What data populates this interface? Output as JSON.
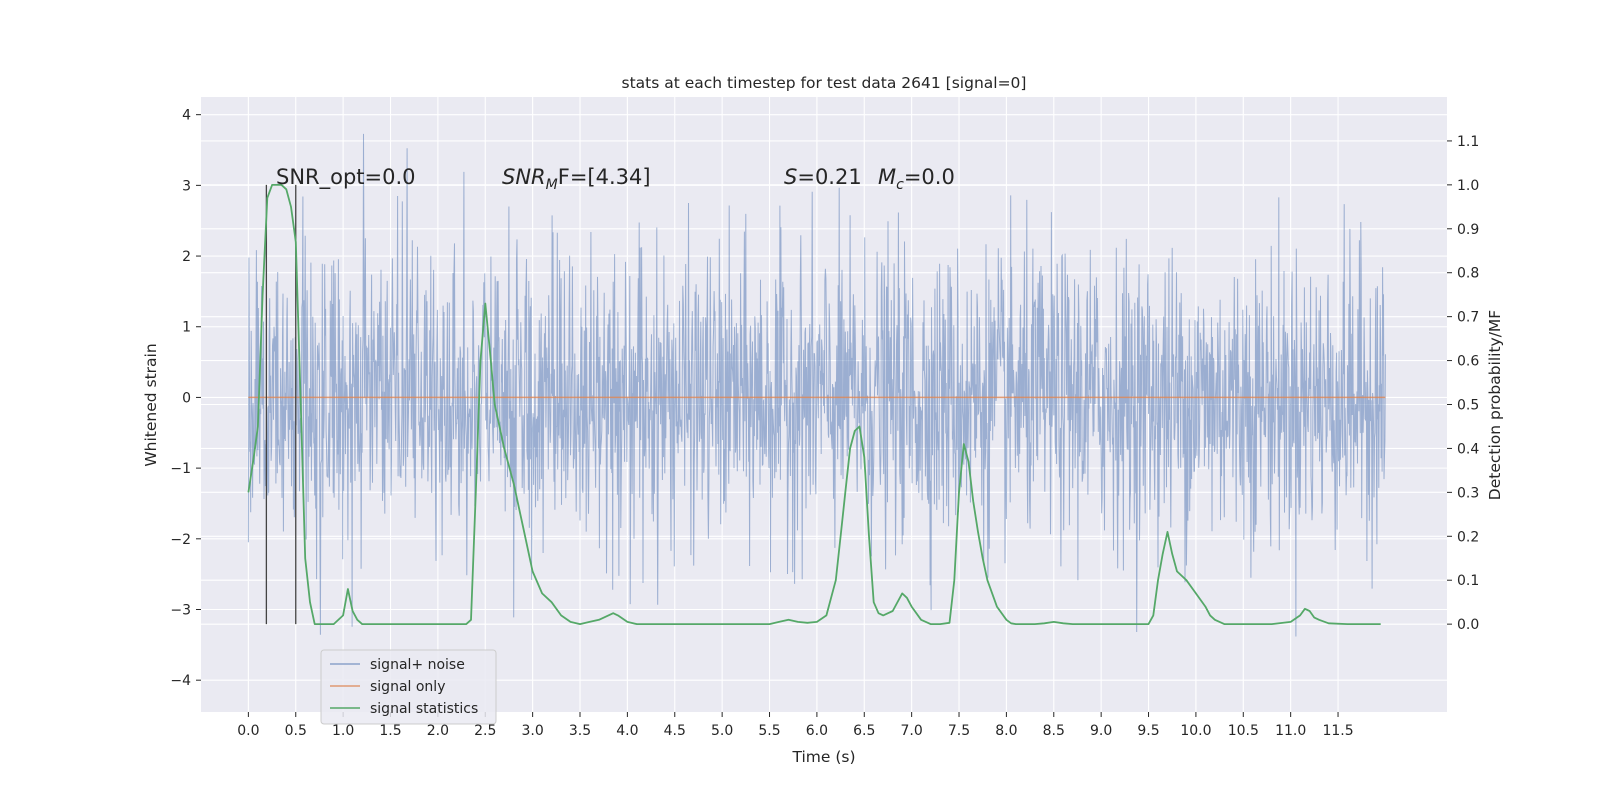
{
  "chart_data": {
    "type": "line",
    "title": "stats at each timestep for test data 2641 [signal=0]",
    "xlabel": "Time (s)",
    "ylabel": "Whitened strain",
    "ylabel_right": "Detection probability/MF",
    "xlim": [
      -0.5,
      12.65
    ],
    "ylim": [
      -4.45,
      4.25
    ],
    "ylim_right": [
      -0.2,
      1.2
    ],
    "xticks": [
      0.0,
      0.5,
      1.0,
      1.5,
      2.0,
      2.5,
      3.0,
      3.5,
      4.0,
      4.5,
      5.0,
      5.5,
      6.0,
      6.5,
      7.0,
      7.5,
      8.0,
      8.5,
      9.0,
      9.5,
      10.0,
      10.5,
      11.0,
      11.5
    ],
    "xtick_labels": [
      "0.0",
      "0.5",
      "1.0",
      "1.5",
      "2.0",
      "2.5",
      "3.0",
      "3.5",
      "4.0",
      "4.5",
      "5.0",
      "5.5",
      "6.0",
      "6.5",
      "7.0",
      "7.5",
      "8.0",
      "8.5",
      "9.0",
      "9.5",
      "10.0",
      "10.5",
      "11.0",
      "11.5"
    ],
    "yticks": [
      -4,
      -3,
      -2,
      -1,
      0,
      1,
      2,
      3,
      4
    ],
    "ytick_labels": [
      "−4",
      "−3",
      "−2",
      "−1",
      "0",
      "1",
      "2",
      "3",
      "4"
    ],
    "yticks_right": [
      0.0,
      0.1,
      0.2,
      0.3,
      0.4,
      0.5,
      0.6,
      0.7,
      0.8,
      0.9,
      1.0,
      1.1
    ],
    "ytick_labels_right": [
      "0.0",
      "0.1",
      "0.2",
      "0.3",
      "0.4",
      "0.5",
      "0.6",
      "0.7",
      "0.8",
      "0.9",
      "1.0",
      "1.1"
    ],
    "grid": true,
    "legend_position": "lower-left",
    "annotations": {
      "snr_opt": "SNR_opt=0.0",
      "snr_mf_base": "SNR",
      "snr_mf_sub": "M",
      "snr_mf_tail": "F=[4.34]",
      "s_label": "S",
      "s_value": "=0.21",
      "mc_label": "M",
      "mc_sub": "c",
      "mc_value": "=0.0"
    },
    "vertical_markers_x": [
      0.19,
      0.5
    ],
    "series": [
      {
        "name": "signal+ noise",
        "color": "#4c72b0",
        "style": "dense noise trace",
        "t_range": [
          0.0,
          12.0
        ],
        "band_sigma": 1.0,
        "approx_extremes": {
          "max": 3.9,
          "min": -4.1
        }
      },
      {
        "name": "signal only",
        "color": "#dd8452",
        "x": [
          0.0,
          12.0
        ],
        "y": [
          0.0,
          0.0
        ]
      },
      {
        "name": "signal statistics",
        "color": "#55a868",
        "axis": "right",
        "x": [
          0.0,
          0.05,
          0.1,
          0.15,
          0.2,
          0.25,
          0.3,
          0.35,
          0.4,
          0.45,
          0.5,
          0.55,
          0.6,
          0.65,
          0.7,
          0.75,
          0.8,
          0.9,
          1.0,
          1.05,
          1.1,
          1.15,
          1.2,
          1.3,
          1.5,
          1.8,
          2.0,
          2.2,
          2.3,
          2.35,
          2.4,
          2.45,
          2.5,
          2.55,
          2.6,
          2.65,
          2.7,
          2.8,
          2.9,
          3.0,
          3.1,
          3.2,
          3.3,
          3.4,
          3.5,
          3.6,
          3.7,
          3.8,
          3.85,
          3.9,
          4.0,
          4.1,
          4.5,
          5.0,
          5.5,
          5.6,
          5.7,
          5.8,
          5.9,
          6.0,
          6.1,
          6.2,
          6.25,
          6.3,
          6.35,
          6.4,
          6.45,
          6.5,
          6.55,
          6.6,
          6.65,
          6.7,
          6.8,
          6.9,
          6.95,
          7.0,
          7.1,
          7.2,
          7.3,
          7.4,
          7.45,
          7.5,
          7.55,
          7.6,
          7.65,
          7.7,
          7.75,
          7.8,
          7.9,
          8.0,
          8.05,
          8.1,
          8.2,
          8.3,
          8.4,
          8.5,
          8.6,
          8.7,
          8.8,
          9.0,
          9.3,
          9.5,
          9.55,
          9.6,
          9.65,
          9.7,
          9.75,
          9.8,
          9.9,
          10.0,
          10.1,
          10.15,
          10.2,
          10.3,
          10.5,
          10.8,
          11.0,
          11.1,
          11.15,
          11.2,
          11.25,
          11.3,
          11.4,
          11.6,
          11.8,
          11.95
        ],
        "y": [
          0.3,
          0.37,
          0.45,
          0.75,
          0.97,
          1.0,
          1.0,
          1.0,
          0.99,
          0.95,
          0.87,
          0.52,
          0.15,
          0.05,
          0.0,
          0.0,
          0.0,
          0.0,
          0.02,
          0.08,
          0.03,
          0.01,
          0.0,
          0.0,
          0.0,
          0.0,
          0.0,
          0.0,
          0.0,
          0.01,
          0.3,
          0.6,
          0.73,
          0.62,
          0.5,
          0.45,
          0.4,
          0.32,
          0.22,
          0.12,
          0.07,
          0.05,
          0.02,
          0.005,
          0.0,
          0.005,
          0.01,
          0.02,
          0.025,
          0.02,
          0.005,
          0.0,
          0.0,
          0.0,
          0.0,
          0.005,
          0.01,
          0.005,
          0.003,
          0.005,
          0.02,
          0.1,
          0.2,
          0.3,
          0.4,
          0.44,
          0.45,
          0.38,
          0.2,
          0.05,
          0.025,
          0.02,
          0.03,
          0.07,
          0.06,
          0.04,
          0.01,
          0.0,
          0.0,
          0.003,
          0.1,
          0.3,
          0.41,
          0.37,
          0.28,
          0.21,
          0.15,
          0.1,
          0.04,
          0.01,
          0.002,
          0.0,
          0.0,
          0.0,
          0.002,
          0.005,
          0.002,
          0.0,
          0.0,
          0.0,
          0.0,
          0.0,
          0.02,
          0.1,
          0.16,
          0.21,
          0.16,
          0.12,
          0.1,
          0.07,
          0.04,
          0.02,
          0.01,
          0.0,
          0.0,
          0.0,
          0.005,
          0.02,
          0.035,
          0.03,
          0.015,
          0.01,
          0.002,
          0.0,
          0.0,
          0.0
        ]
      }
    ]
  }
}
